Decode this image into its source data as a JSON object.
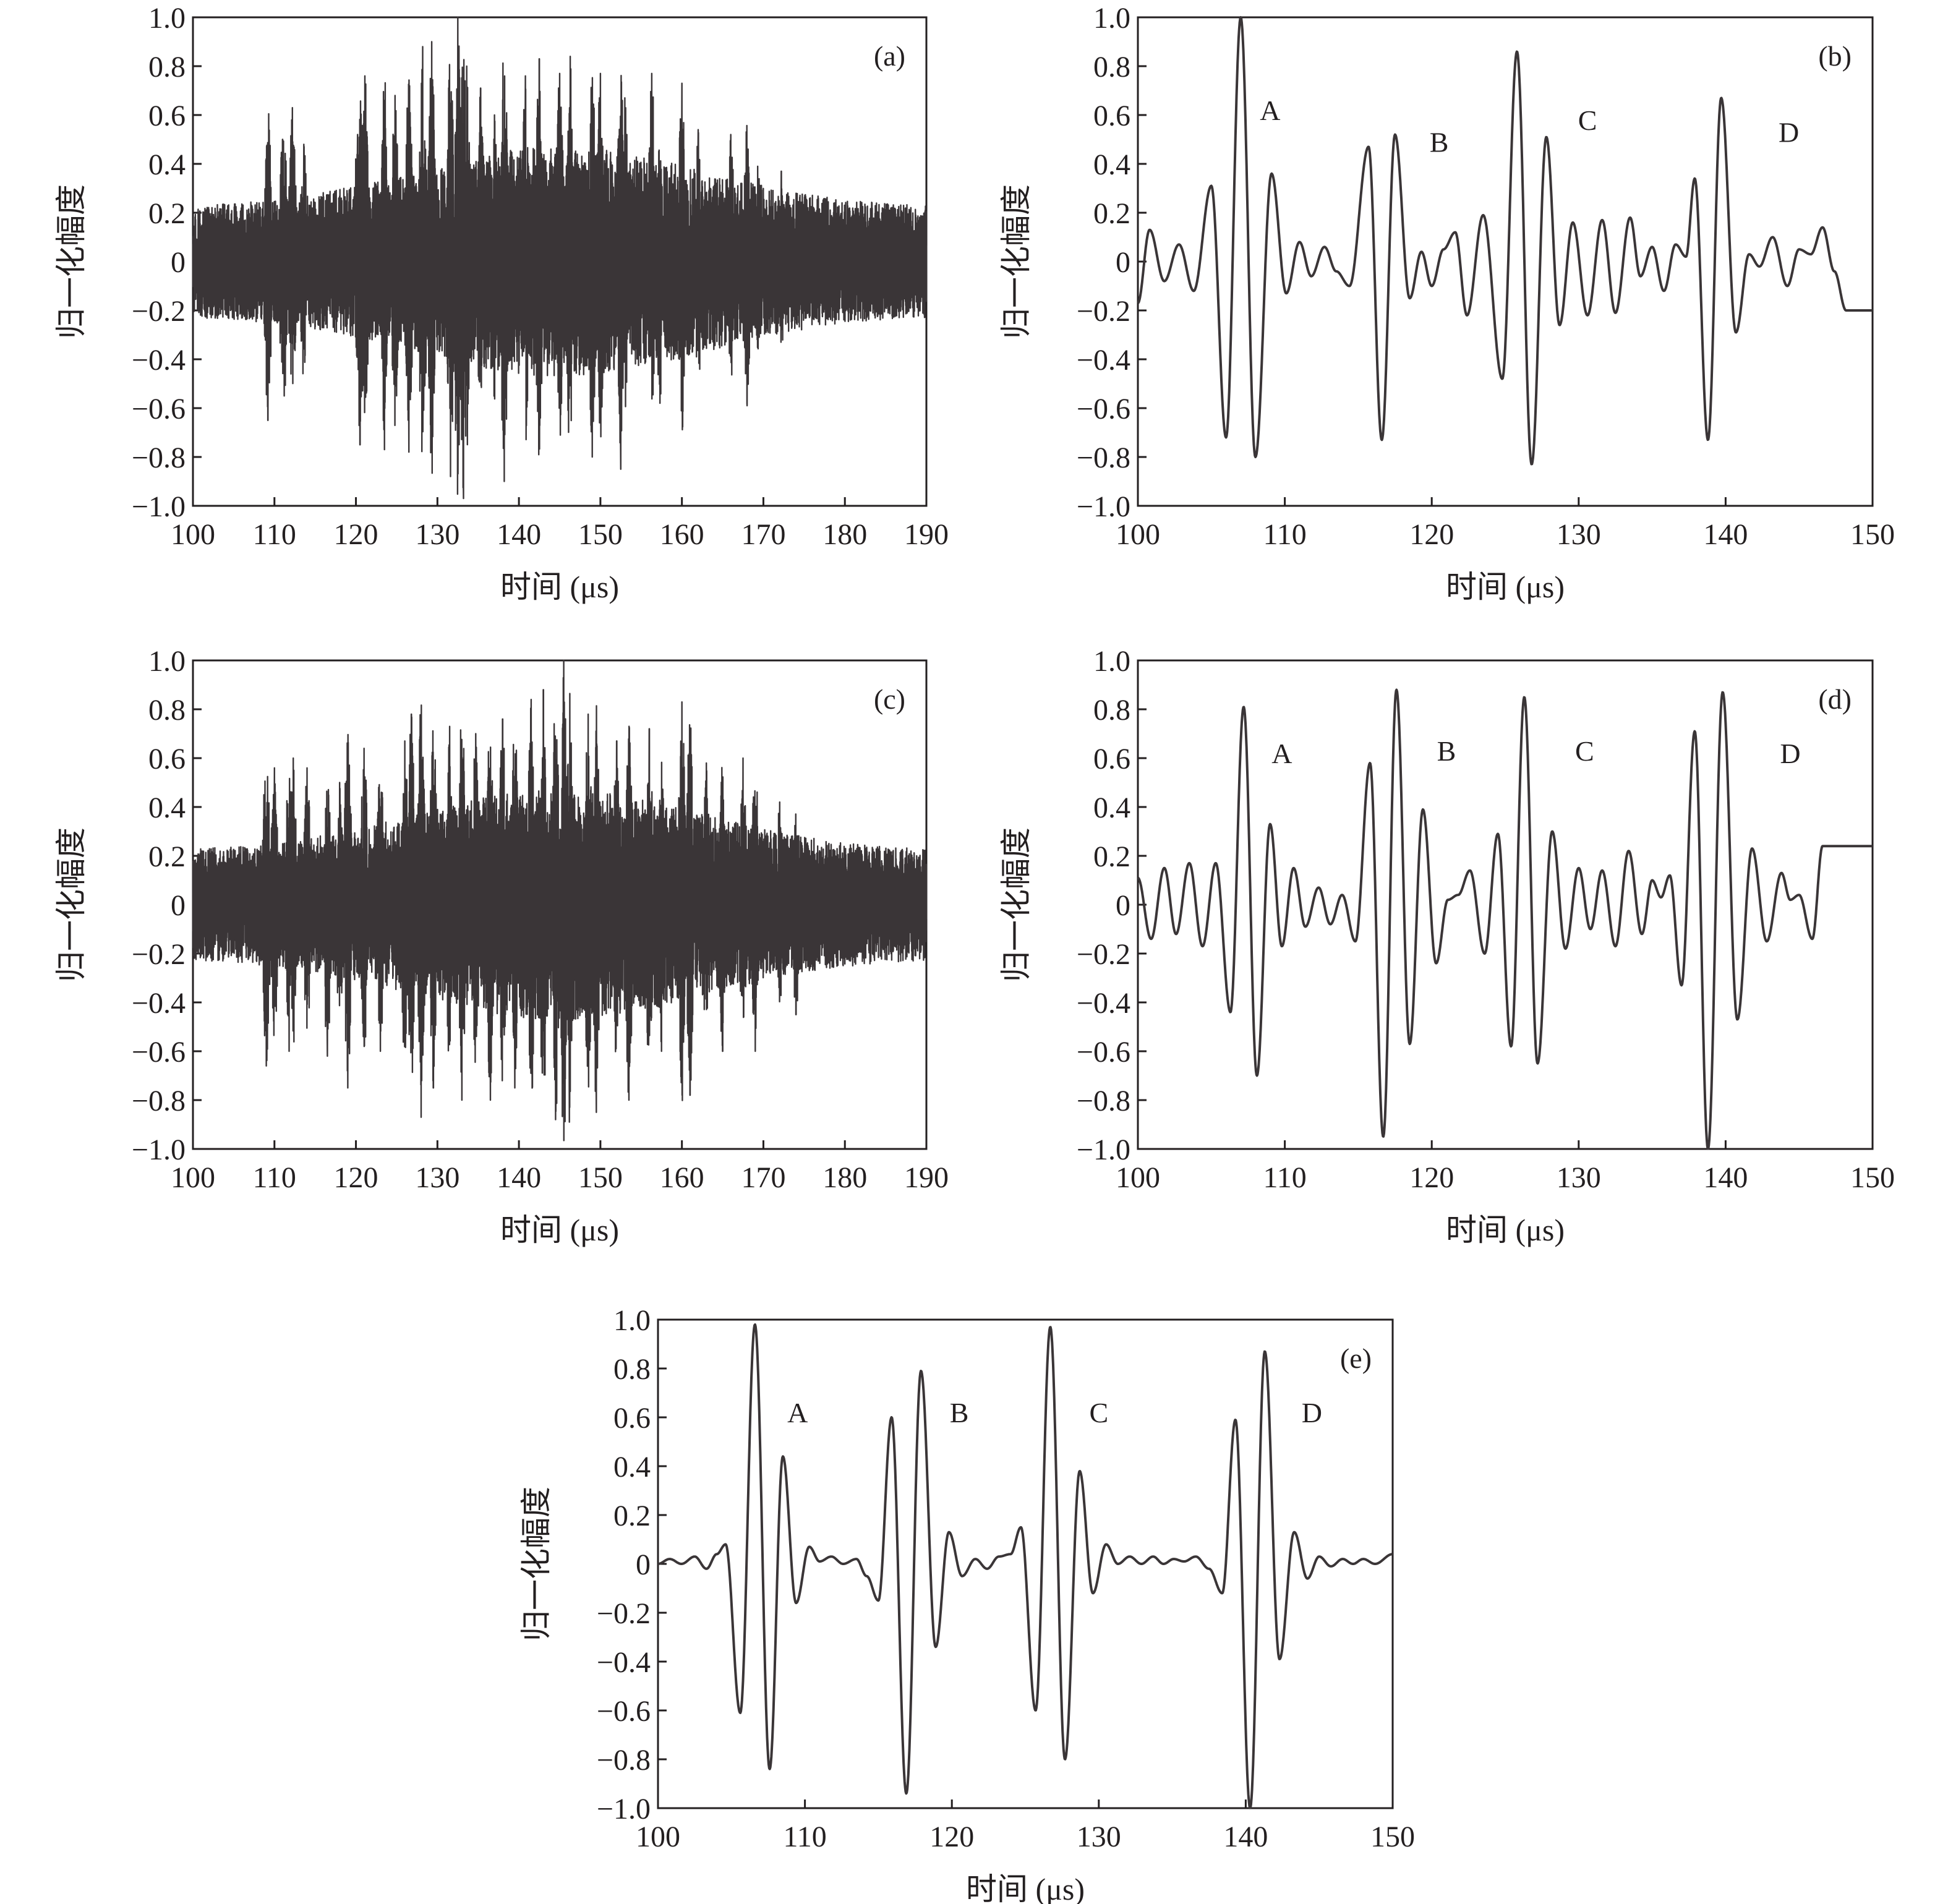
{
  "colors": {
    "axis": "#231f20",
    "signal": "#3a3537",
    "background": "#ffffff"
  },
  "chart_data": [
    {
      "id": "a",
      "type": "line",
      "panel_label": "(a)",
      "xlabel": "时间 (μs)",
      "ylabel": "归一化幅度",
      "xlim": [
        100,
        190
      ],
      "ylim": [
        -1.0,
        1.0
      ],
      "xticks": [
        "100",
        "110",
        "120",
        "130",
        "140",
        "150",
        "160",
        "170",
        "180",
        "190"
      ],
      "yticks": [
        "−1.0",
        "−0.8",
        "−0.6",
        "−0.4",
        "−0.2",
        "0",
        "0.2",
        "0.4",
        "0.6",
        "0.8",
        "1.0"
      ],
      "grid": false,
      "legend": "none",
      "signal": "dense-noisy",
      "peaks": [
        {
          "x": 109,
          "y": 0.35
        },
        {
          "x": 109.2,
          "y": -0.65
        },
        {
          "x": 111,
          "y": 0.5
        },
        {
          "x": 111.2,
          "y": -0.55
        },
        {
          "x": 112.2,
          "y": 0.63
        },
        {
          "x": 113.6,
          "y": 0.48
        },
        {
          "x": 120.2,
          "y": 0.52
        },
        {
          "x": 120.5,
          "y": -0.75
        },
        {
          "x": 121.1,
          "y": 0.76
        },
        {
          "x": 123.5,
          "y": -0.77
        },
        {
          "x": 124.8,
          "y": 0.68
        },
        {
          "x": 126.5,
          "y": -0.78
        },
        {
          "x": 128.2,
          "y": 0.88
        },
        {
          "x": 129.3,
          "y": 0.9
        },
        {
          "x": 131.6,
          "y": -0.88
        },
        {
          "x": 132.5,
          "y": 1.0
        },
        {
          "x": 133.2,
          "y": -0.97
        },
        {
          "x": 133.6,
          "y": 0.8
        },
        {
          "x": 135.3,
          "y": 0.71
        },
        {
          "x": 137,
          "y": 0.6
        },
        {
          "x": 138.2,
          "y": -0.9
        },
        {
          "x": 140.8,
          "y": 0.76
        },
        {
          "x": 142.5,
          "y": 0.83
        },
        {
          "x": 145,
          "y": 0.77
        },
        {
          "x": 146.3,
          "y": 0.84
        },
        {
          "x": 149,
          "y": -0.8
        },
        {
          "x": 150,
          "y": 0.77
        },
        {
          "x": 152.5,
          "y": -0.85
        },
        {
          "x": 153,
          "y": 0.67
        },
        {
          "x": 156.3,
          "y": 0.77
        },
        {
          "x": 157.3,
          "y": -0.58
        },
        {
          "x": 160,
          "y": 0.73
        },
        {
          "x": 162,
          "y": 0.54
        },
        {
          "x": 166,
          "y": 0.52
        },
        {
          "x": 168,
          "y": -0.59
        },
        {
          "x": 169.3,
          "y": 0.39
        },
        {
          "x": 172.2,
          "y": 0.37
        }
      ]
    },
    {
      "id": "b",
      "type": "line",
      "panel_label": "(b)",
      "xlabel": "时间 (μs)",
      "ylabel": "归一化幅度",
      "xlim": [
        100,
        150
      ],
      "ylim": [
        -1.0,
        1.0
      ],
      "xticks": [
        "100",
        "110",
        "120",
        "130",
        "140",
        "150"
      ],
      "yticks": [
        "−1.0",
        "−0.8",
        "−0.6",
        "−0.4",
        "−0.2",
        "0",
        "0.2",
        "0.4",
        "0.6",
        "0.8",
        "1.0"
      ],
      "grid": false,
      "legend": "none",
      "signal": "smooth",
      "annotations": [
        {
          "text": "A",
          "x": 109.0,
          "y": 0.62
        },
        {
          "text": "B",
          "x": 120.5,
          "y": 0.49
        },
        {
          "text": "C",
          "x": 130.6,
          "y": 0.58
        },
        {
          "text": "D",
          "x": 144.3,
          "y": 0.53
        }
      ],
      "peaks": [
        {
          "x": 100,
          "y": -0.17
        },
        {
          "x": 100.8,
          "y": 0.13
        },
        {
          "x": 101.8,
          "y": -0.08
        },
        {
          "x": 102.8,
          "y": 0.07
        },
        {
          "x": 103.8,
          "y": -0.12
        },
        {
          "x": 105.0,
          "y": 0.31
        },
        {
          "x": 106.0,
          "y": -0.72
        },
        {
          "x": 107.0,
          "y": 1.0
        },
        {
          "x": 108.0,
          "y": -0.8
        },
        {
          "x": 109.1,
          "y": 0.36
        },
        {
          "x": 110.1,
          "y": -0.13
        },
        {
          "x": 111.0,
          "y": 0.08
        },
        {
          "x": 111.8,
          "y": -0.06
        },
        {
          "x": 112.7,
          "y": 0.06
        },
        {
          "x": 113.5,
          "y": -0.04
        },
        {
          "x": 114.4,
          "y": -0.1
        },
        {
          "x": 115.7,
          "y": 0.47
        },
        {
          "x": 116.6,
          "y": -0.73
        },
        {
          "x": 117.5,
          "y": 0.52
        },
        {
          "x": 118.5,
          "y": -0.15
        },
        {
          "x": 119.3,
          "y": 0.04
        },
        {
          "x": 120.0,
          "y": -0.1
        },
        {
          "x": 120.8,
          "y": 0.05
        },
        {
          "x": 121.6,
          "y": 0.12
        },
        {
          "x": 122.4,
          "y": -0.22
        },
        {
          "x": 123.5,
          "y": 0.19
        },
        {
          "x": 124.8,
          "y": -0.48
        },
        {
          "x": 125.8,
          "y": 0.86
        },
        {
          "x": 126.8,
          "y": -0.83
        },
        {
          "x": 127.8,
          "y": 0.51
        },
        {
          "x": 128.7,
          "y": -0.26
        },
        {
          "x": 129.6,
          "y": 0.16
        },
        {
          "x": 130.6,
          "y": -0.22
        },
        {
          "x": 131.6,
          "y": 0.17
        },
        {
          "x": 132.5,
          "y": -0.21
        },
        {
          "x": 133.5,
          "y": 0.18
        },
        {
          "x": 134.2,
          "y": -0.06
        },
        {
          "x": 135.0,
          "y": 0.06
        },
        {
          "x": 135.8,
          "y": -0.12
        },
        {
          "x": 136.6,
          "y": 0.07
        },
        {
          "x": 137.3,
          "y": 0.02
        },
        {
          "x": 137.9,
          "y": 0.34
        },
        {
          "x": 138.8,
          "y": -0.73
        },
        {
          "x": 139.7,
          "y": 0.67
        },
        {
          "x": 140.7,
          "y": -0.29
        },
        {
          "x": 141.6,
          "y": 0.03
        },
        {
          "x": 142.3,
          "y": -0.02
        },
        {
          "x": 143.2,
          "y": 0.1
        },
        {
          "x": 144.2,
          "y": -0.1
        },
        {
          "x": 145.0,
          "y": 0.05
        },
        {
          "x": 145.8,
          "y": 0.03
        },
        {
          "x": 146.6,
          "y": 0.14
        },
        {
          "x": 147.4,
          "y": -0.04
        },
        {
          "x": 148.2,
          "y": -0.2
        }
      ]
    },
    {
      "id": "c",
      "type": "line",
      "panel_label": "(c)",
      "xlabel": "时间 (μs)",
      "ylabel": "归一化幅度",
      "xlim": [
        100,
        190
      ],
      "ylim": [
        -1.0,
        1.0
      ],
      "xticks": [
        "100",
        "110",
        "120",
        "130",
        "140",
        "150",
        "160",
        "170",
        "180",
        "190"
      ],
      "yticks": [
        "−1.0",
        "−0.8",
        "−0.6",
        "−0.4",
        "−0.2",
        "0",
        "0.2",
        "0.4",
        "0.6",
        "0.8",
        "1.0"
      ],
      "grid": false,
      "legend": "none",
      "signal": "dense-noisy",
      "peaks": [
        {
          "x": 109,
          "y": -0.66
        },
        {
          "x": 110,
          "y": 0.56
        },
        {
          "x": 111.8,
          "y": -0.6
        },
        {
          "x": 112.3,
          "y": 0.6
        },
        {
          "x": 114,
          "y": 0.56
        },
        {
          "x": 116.5,
          "y": -0.62
        },
        {
          "x": 118,
          "y": 0.5
        },
        {
          "x": 119,
          "y": -0.75
        },
        {
          "x": 121,
          "y": 0.64
        },
        {
          "x": 123,
          "y": -0.6
        },
        {
          "x": 126,
          "y": 0.67
        },
        {
          "x": 126.8,
          "y": 0.78
        },
        {
          "x": 128,
          "y": -0.87
        },
        {
          "x": 129.5,
          "y": -0.75
        },
        {
          "x": 131.5,
          "y": 0.73
        },
        {
          "x": 133,
          "y": -0.8
        },
        {
          "x": 134.7,
          "y": 0.7
        },
        {
          "x": 136.5,
          "y": -0.8
        },
        {
          "x": 138,
          "y": 0.76
        },
        {
          "x": 139.5,
          "y": -0.75
        },
        {
          "x": 141.5,
          "y": 0.84
        },
        {
          "x": 143,
          "y": 0.88
        },
        {
          "x": 144.5,
          "y": -0.88
        },
        {
          "x": 145.5,
          "y": 1.0
        },
        {
          "x": 146.2,
          "y": -0.89
        },
        {
          "x": 148.5,
          "y": 0.78
        },
        {
          "x": 149.5,
          "y": -0.85
        },
        {
          "x": 152,
          "y": 0.67
        },
        {
          "x": 153.5,
          "y": -0.8
        },
        {
          "x": 156,
          "y": 0.72
        },
        {
          "x": 157.5,
          "y": -0.6
        },
        {
          "x": 160,
          "y": 0.83
        },
        {
          "x": 161,
          "y": -0.78
        },
        {
          "x": 163,
          "y": 0.58
        },
        {
          "x": 165,
          "y": -0.6
        },
        {
          "x": 167.5,
          "y": 0.6
        },
        {
          "x": 169,
          "y": -0.6
        },
        {
          "x": 172,
          "y": 0.42
        },
        {
          "x": 174,
          "y": -0.45
        }
      ]
    },
    {
      "id": "d",
      "type": "line",
      "panel_label": "(d)",
      "xlabel": "时间 (μs)",
      "ylabel": "归一化幅度",
      "xlim": [
        100,
        150
      ],
      "ylim": [
        -1.0,
        1.0
      ],
      "xticks": [
        "100",
        "110",
        "120",
        "130",
        "140",
        "150"
      ],
      "yticks": [
        "−1.0",
        "−0.8",
        "−0.6",
        "−0.4",
        "−0.2",
        "0",
        "0.2",
        "0.4",
        "0.6",
        "0.8",
        "1.0"
      ],
      "grid": false,
      "legend": "none",
      "signal": "smooth",
      "annotations": [
        {
          "text": "A",
          "x": 109.8,
          "y": 0.62
        },
        {
          "text": "B",
          "x": 121.0,
          "y": 0.63
        },
        {
          "text": "C",
          "x": 130.4,
          "y": 0.63
        },
        {
          "text": "D",
          "x": 144.4,
          "y": 0.62
        }
      ],
      "peaks": [
        {
          "x": 100,
          "y": 0.11
        },
        {
          "x": 100.9,
          "y": -0.14
        },
        {
          "x": 101.8,
          "y": 0.15
        },
        {
          "x": 102.6,
          "y": -0.12
        },
        {
          "x": 103.5,
          "y": 0.17
        },
        {
          "x": 104.4,
          "y": -0.17
        },
        {
          "x": 105.3,
          "y": 0.17
        },
        {
          "x": 106.3,
          "y": -0.44
        },
        {
          "x": 107.2,
          "y": 0.81
        },
        {
          "x": 108.1,
          "y": -0.7
        },
        {
          "x": 109.0,
          "y": 0.33
        },
        {
          "x": 109.8,
          "y": -0.17
        },
        {
          "x": 110.6,
          "y": 0.15
        },
        {
          "x": 111.4,
          "y": -0.09
        },
        {
          "x": 112.3,
          "y": 0.07
        },
        {
          "x": 113.1,
          "y": -0.08
        },
        {
          "x": 113.9,
          "y": 0.04
        },
        {
          "x": 114.8,
          "y": -0.15
        },
        {
          "x": 115.8,
          "y": 0.58
        },
        {
          "x": 116.7,
          "y": -0.95
        },
        {
          "x": 117.6,
          "y": 0.88
        },
        {
          "x": 118.5,
          "y": -0.57
        },
        {
          "x": 119.4,
          "y": 0.39
        },
        {
          "x": 120.3,
          "y": -0.24
        },
        {
          "x": 121.1,
          "y": 0.02
        },
        {
          "x": 121.8,
          "y": 0.04
        },
        {
          "x": 122.6,
          "y": 0.14
        },
        {
          "x": 123.6,
          "y": -0.2
        },
        {
          "x": 124.5,
          "y": 0.29
        },
        {
          "x": 125.4,
          "y": -0.58
        },
        {
          "x": 126.3,
          "y": 0.85
        },
        {
          "x": 127.2,
          "y": -0.65
        },
        {
          "x": 128.2,
          "y": 0.3
        },
        {
          "x": 129.1,
          "y": -0.18
        },
        {
          "x": 130.0,
          "y": 0.15
        },
        {
          "x": 130.8,
          "y": -0.1
        },
        {
          "x": 131.6,
          "y": 0.14
        },
        {
          "x": 132.5,
          "y": -0.17
        },
        {
          "x": 133.4,
          "y": 0.22
        },
        {
          "x": 134.3,
          "y": -0.12
        },
        {
          "x": 135.0,
          "y": 0.1
        },
        {
          "x": 135.6,
          "y": 0.03
        },
        {
          "x": 136.2,
          "y": 0.12
        },
        {
          "x": 137.0,
          "y": -0.33
        },
        {
          "x": 137.9,
          "y": 0.71
        },
        {
          "x": 138.8,
          "y": -1.0
        },
        {
          "x": 139.8,
          "y": 0.87
        },
        {
          "x": 140.8,
          "y": -0.47
        },
        {
          "x": 141.8,
          "y": 0.23
        },
        {
          "x": 142.8,
          "y": -0.15
        },
        {
          "x": 143.8,
          "y": 0.13
        },
        {
          "x": 144.4,
          "y": 0.02
        },
        {
          "x": 145.0,
          "y": 0.04
        },
        {
          "x": 145.9,
          "y": -0.14
        },
        {
          "x": 146.6,
          "y": 0.24
        }
      ]
    },
    {
      "id": "e",
      "type": "line",
      "panel_label": "(e)",
      "xlabel": "时间 (μs)",
      "ylabel": "归一化幅度",
      "xlim": [
        100,
        150
      ],
      "ylim": [
        -1.0,
        1.0
      ],
      "xticks": [
        "100",
        "110",
        "120",
        "130",
        "140",
        "150"
      ],
      "yticks": [
        "−1.0",
        "−0.8",
        "−0.6",
        "−0.4",
        "−0.2",
        "0",
        "0.2",
        "0.4",
        "0.6",
        "0.8",
        "1.0"
      ],
      "grid": false,
      "legend": "none",
      "signal": "smooth",
      "annotations": [
        {
          "text": "A",
          "x": 109.5,
          "y": 0.62
        },
        {
          "text": "B",
          "x": 120.5,
          "y": 0.62
        },
        {
          "text": "C",
          "x": 130.0,
          "y": 0.62
        },
        {
          "text": "D",
          "x": 144.5,
          "y": 0.62
        }
      ],
      "peaks": [
        {
          "x": 100,
          "y": 0.0
        },
        {
          "x": 100.8,
          "y": 0.02
        },
        {
          "x": 101.6,
          "y": 0.0
        },
        {
          "x": 102.5,
          "y": 0.03
        },
        {
          "x": 103.3,
          "y": -0.02
        },
        {
          "x": 104.0,
          "y": 0.04
        },
        {
          "x": 104.6,
          "y": 0.08
        },
        {
          "x": 105.6,
          "y": -0.61
        },
        {
          "x": 106.6,
          "y": 0.98
        },
        {
          "x": 107.6,
          "y": -0.84
        },
        {
          "x": 108.5,
          "y": 0.44
        },
        {
          "x": 109.4,
          "y": -0.16
        },
        {
          "x": 110.3,
          "y": 0.07
        },
        {
          "x": 111.0,
          "y": 0.01
        },
        {
          "x": 111.8,
          "y": 0.03
        },
        {
          "x": 112.6,
          "y": 0.0
        },
        {
          "x": 113.5,
          "y": 0.02
        },
        {
          "x": 114.2,
          "y": -0.05
        },
        {
          "x": 115.0,
          "y": -0.15
        },
        {
          "x": 115.9,
          "y": 0.6
        },
        {
          "x": 116.9,
          "y": -0.94
        },
        {
          "x": 117.9,
          "y": 0.79
        },
        {
          "x": 118.9,
          "y": -0.34
        },
        {
          "x": 119.8,
          "y": 0.13
        },
        {
          "x": 120.7,
          "y": -0.05
        },
        {
          "x": 121.6,
          "y": 0.02
        },
        {
          "x": 122.4,
          "y": -0.02
        },
        {
          "x": 123.2,
          "y": 0.03
        },
        {
          "x": 124.0,
          "y": 0.04
        },
        {
          "x": 124.7,
          "y": 0.15
        },
        {
          "x": 125.7,
          "y": -0.6
        },
        {
          "x": 126.7,
          "y": 0.97
        },
        {
          "x": 127.7,
          "y": -0.8
        },
        {
          "x": 128.7,
          "y": 0.38
        },
        {
          "x": 129.6,
          "y": -0.12
        },
        {
          "x": 130.5,
          "y": 0.08
        },
        {
          "x": 131.3,
          "y": 0.0
        },
        {
          "x": 132.1,
          "y": 0.03
        },
        {
          "x": 132.9,
          "y": 0.0
        },
        {
          "x": 133.7,
          "y": 0.03
        },
        {
          "x": 134.4,
          "y": 0.0
        },
        {
          "x": 135.1,
          "y": 0.02
        },
        {
          "x": 135.8,
          "y": 0.01
        },
        {
          "x": 136.6,
          "y": 0.03
        },
        {
          "x": 137.5,
          "y": -0.02
        },
        {
          "x": 138.4,
          "y": -0.12
        },
        {
          "x": 139.3,
          "y": 0.59
        },
        {
          "x": 140.3,
          "y": -1.0
        },
        {
          "x": 141.3,
          "y": 0.87
        },
        {
          "x": 142.3,
          "y": -0.39
        },
        {
          "x": 143.3,
          "y": 0.13
        },
        {
          "x": 144.2,
          "y": -0.06
        },
        {
          "x": 145.0,
          "y": 0.03
        },
        {
          "x": 145.8,
          "y": -0.01
        },
        {
          "x": 146.6,
          "y": 0.02
        },
        {
          "x": 147.3,
          "y": 0.0
        },
        {
          "x": 148.0,
          "y": 0.02
        },
        {
          "x": 148.8,
          "y": 0.0
        },
        {
          "x": 150,
          "y": 0.04
        }
      ]
    }
  ]
}
